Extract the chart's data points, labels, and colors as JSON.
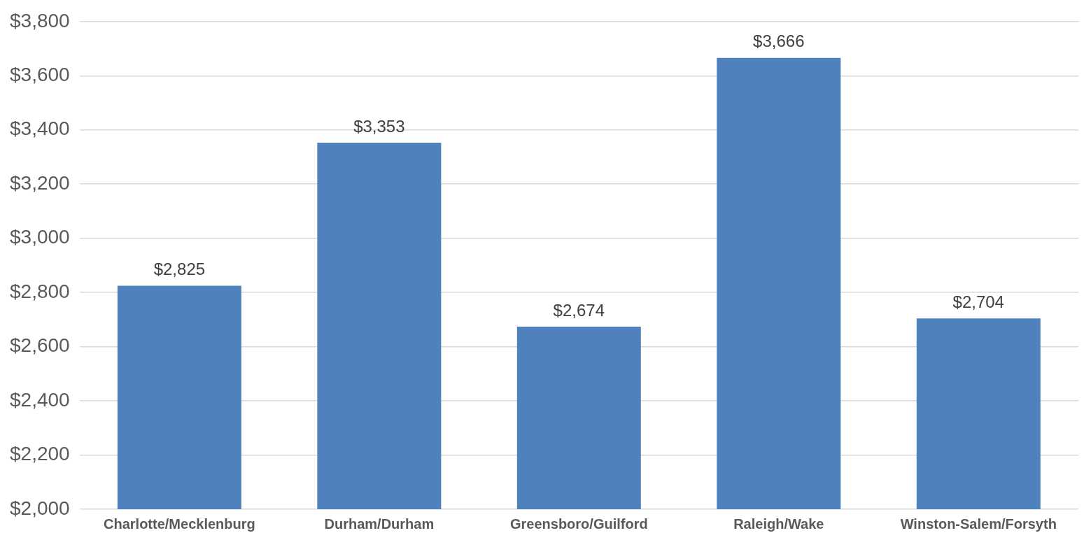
{
  "chart_data": {
    "type": "bar",
    "categories": [
      "Charlotte/Mecklenburg",
      "Durham/Durham",
      "Greensboro/Guilford",
      "Raleigh/Wake",
      "Winston-Salem/Forsyth"
    ],
    "values": [
      2825,
      3353,
      2674,
      3666,
      2704
    ],
    "value_labels": [
      "$2,825",
      "$3,353",
      "$2,674",
      "$3,666",
      "$2,704"
    ],
    "color": "#4f81bd",
    "ylim": [
      2000,
      3800
    ],
    "yticks": [
      {
        "value": 2000,
        "label": "$2,000"
      },
      {
        "value": 2200,
        "label": "$2,200"
      },
      {
        "value": 2400,
        "label": "$2,400"
      },
      {
        "value": 2600,
        "label": "$2,600"
      },
      {
        "value": 2800,
        "label": "$2,800"
      },
      {
        "value": 3000,
        "label": "$3,000"
      },
      {
        "value": 3200,
        "label": "$3,200"
      },
      {
        "value": 3400,
        "label": "$3,400"
      },
      {
        "value": 3600,
        "label": "$3,600"
      },
      {
        "value": 3800,
        "label": "$3,800"
      }
    ],
    "grid": "y"
  }
}
